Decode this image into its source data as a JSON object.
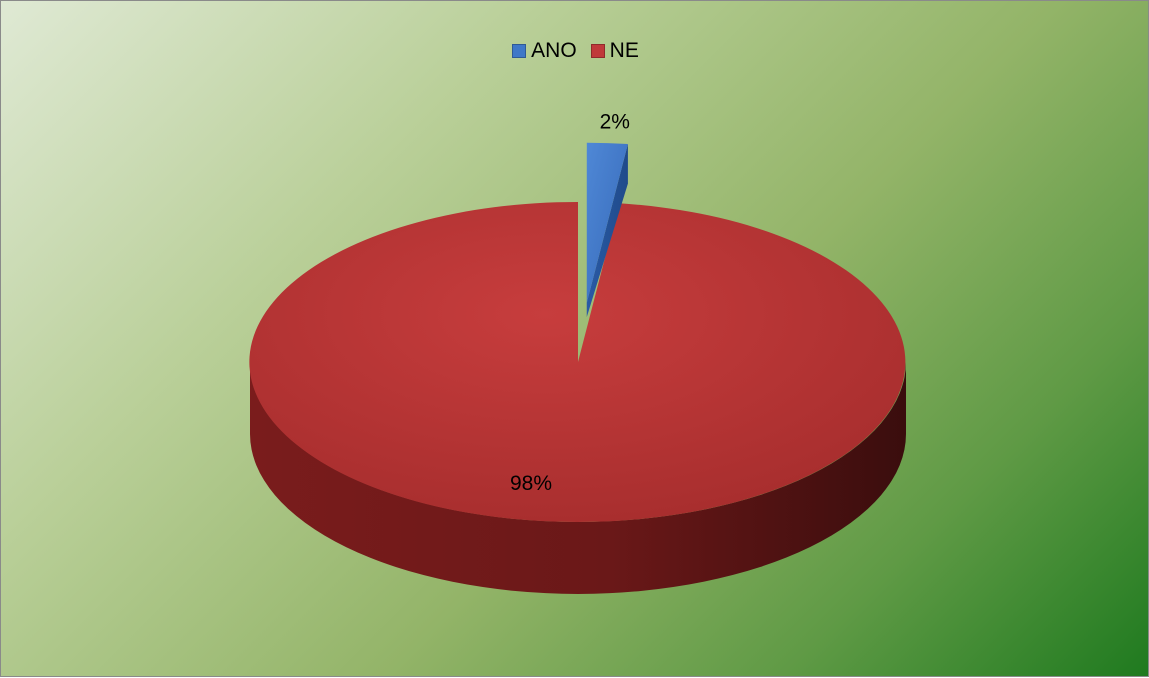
{
  "chart_data": {
    "type": "pie",
    "style": "3d-exploded",
    "categories": [
      "ANO",
      "NE"
    ],
    "values": [
      2,
      98
    ],
    "data_labels": [
      "2%",
      "98%"
    ],
    "colors": [
      "#3f78c8",
      "#c0393a"
    ],
    "legend_position": "top",
    "title": "",
    "background": "green-gradient"
  }
}
